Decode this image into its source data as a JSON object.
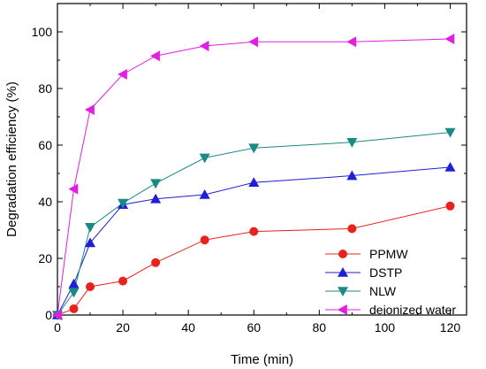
{
  "chart_data": {
    "type": "line",
    "xlabel": "Time (min)",
    "ylabel": "Degradation efficiency (%)",
    "xlim": [
      0,
      125
    ],
    "ylim": [
      0,
      110
    ],
    "xticks": [
      0,
      20,
      40,
      60,
      80,
      100,
      120
    ],
    "yticks": [
      0,
      20,
      40,
      60,
      80,
      100
    ],
    "grid": false,
    "legend_position": "bottom-right",
    "x": [
      0,
      5,
      10,
      20,
      30,
      45,
      60,
      90,
      120
    ],
    "series": [
      {
        "name": "PPMW",
        "color": "#e8221d",
        "marker": "circle",
        "values": [
          0,
          2.2,
          10,
          12,
          18.5,
          26.5,
          29.5,
          30.5,
          38.5
        ]
      },
      {
        "name": "DSTP",
        "color": "#1f1fd6",
        "marker": "triangle-up",
        "values": [
          0,
          11,
          25.5,
          39,
          41,
          42.5,
          46.8,
          49.2,
          52.2
        ]
      },
      {
        "name": "NLW",
        "color": "#1a8a84",
        "marker": "triangle-down",
        "values": [
          0,
          8,
          31,
          39.5,
          46.5,
          55.5,
          59,
          61,
          64.5
        ]
      },
      {
        "name": "deionized water",
        "color": "#e21ee2",
        "marker": "triangle-left",
        "values": [
          0,
          44.5,
          72.5,
          85,
          91.5,
          95,
          96.5,
          96.5,
          97.5
        ]
      }
    ]
  }
}
